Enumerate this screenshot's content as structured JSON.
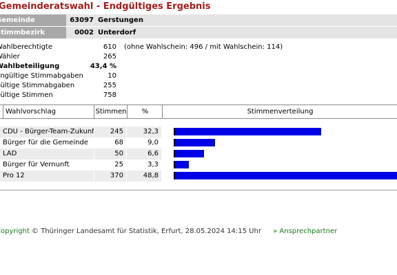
{
  "title": "Gemeinderatswahl - Endgültiges Ergebnis",
  "gemeinde": {
    "label": "Gemeinde",
    "code": "63097",
    "name": "Gerstungen"
  },
  "stimmbezirk": {
    "label": "Stimmbezirk",
    "code": "0002",
    "name": "Unterdorf"
  },
  "stats": [
    {
      "label": "Wahlberechtigte",
      "value": "610",
      "note": "(ohne Wahlschein: 496 / mit Wahlschein: 114)",
      "bold": false
    },
    {
      "label": "Wähler",
      "value": "265",
      "note": "",
      "bold": false
    },
    {
      "label": "Wahlbeteiligung",
      "value": "43,4 %",
      "note": "",
      "bold": true
    },
    {
      "label": "ungültige Stimmabgaben",
      "value": "10",
      "note": "",
      "bold": false
    },
    {
      "label": "gültige Stimmabgaben",
      "value": "255",
      "note": "",
      "bold": false
    },
    {
      "label": "gültige Stimmen",
      "value": "758",
      "note": "",
      "bold": false
    }
  ],
  "table": {
    "headers": {
      "wahlvorschlag": "Wahlvorschlag",
      "stimmen": "Stimmen",
      "prozent": "%",
      "verteilung": "Stimmenverteilung"
    },
    "rows": [
      {
        "name": "CDU - Bürger-Team-Zukunft",
        "stimmen": "245",
        "prozent": "32,3",
        "share": 32.3
      },
      {
        "name": "Bürger für die Gemeinde",
        "stimmen": "68",
        "prozent": "9,0",
        "share": 9.0
      },
      {
        "name": "LAD",
        "stimmen": "50",
        "prozent": "6,6",
        "share": 6.6
      },
      {
        "name": "Bürger für Vernunft",
        "stimmen": "25",
        "prozent": "3,3",
        "share": 3.3
      },
      {
        "name": "Pro 12",
        "stimmen": "370",
        "prozent": "48,8",
        "share": 48.8
      }
    ],
    "bar_color": "#0000e6"
  },
  "footer": {
    "copyright_word": "Copyright",
    "copyright_rest": " © Thüringer Landesamt für Statistik, Erfurt, 28.05.2024 14:15 Uhr",
    "link": "» Ansprechpartner"
  }
}
